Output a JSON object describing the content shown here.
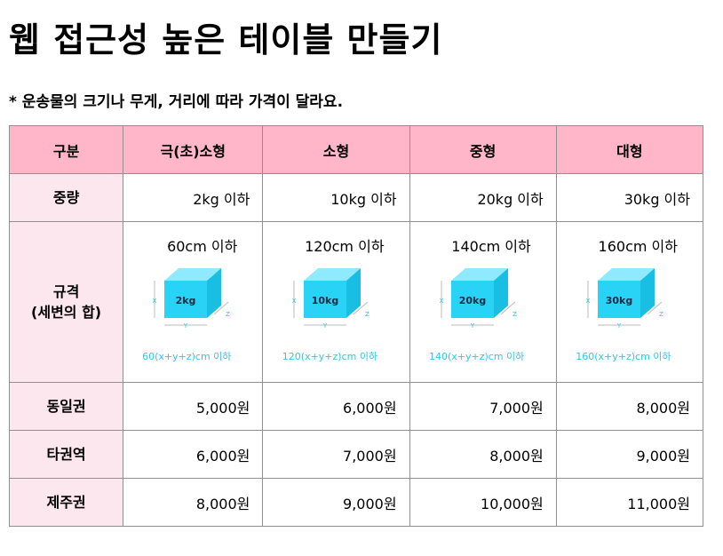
{
  "title": "웹 접근성 높은 테이블 만들기",
  "note": "* 운송물의 크기나 무게, 거리에 따라 가격이 달라요.",
  "table": {
    "headers": [
      "구분",
      "극(초)소형",
      "소형",
      "중형",
      "대형"
    ],
    "weight": {
      "label": "중량",
      "values": [
        "2kg 이하",
        "10kg 이하",
        "20kg 이하",
        "30kg 이하"
      ]
    },
    "size": {
      "label_line1": "규격",
      "label_line2": "(세변의 합)",
      "values": [
        "60cm 이하",
        "120cm 이하",
        "140cm 이하",
        "160cm 이하"
      ],
      "box_labels": [
        "2kg",
        "10kg",
        "20kg",
        "30kg"
      ],
      "axis_x": "X",
      "axis_y": "Y",
      "axis_z": "Z",
      "formulas": [
        "60(x+y+z)cm 이하",
        "120(x+y+z)cm 이하",
        "140(x+y+z)cm 이하",
        "160(x+y+z)cm 이하"
      ]
    },
    "prices": [
      {
        "region": "동일권",
        "values": [
          "5,000원",
          "6,000원",
          "7,000원",
          "8,000원"
        ]
      },
      {
        "region": "타권역",
        "values": [
          "6,000원",
          "7,000원",
          "8,000원",
          "9,000원"
        ]
      },
      {
        "region": "제주권",
        "values": [
          "8,000원",
          "9,000원",
          "10,000원",
          "11,000원"
        ]
      }
    ]
  },
  "colors": {
    "header_bg": "#ffb6c8",
    "row_header_bg": "#fde7ee",
    "box_front": "#29d3f5",
    "formula_text": "#2fc6ea"
  },
  "icons": [
    "box-icon"
  ]
}
